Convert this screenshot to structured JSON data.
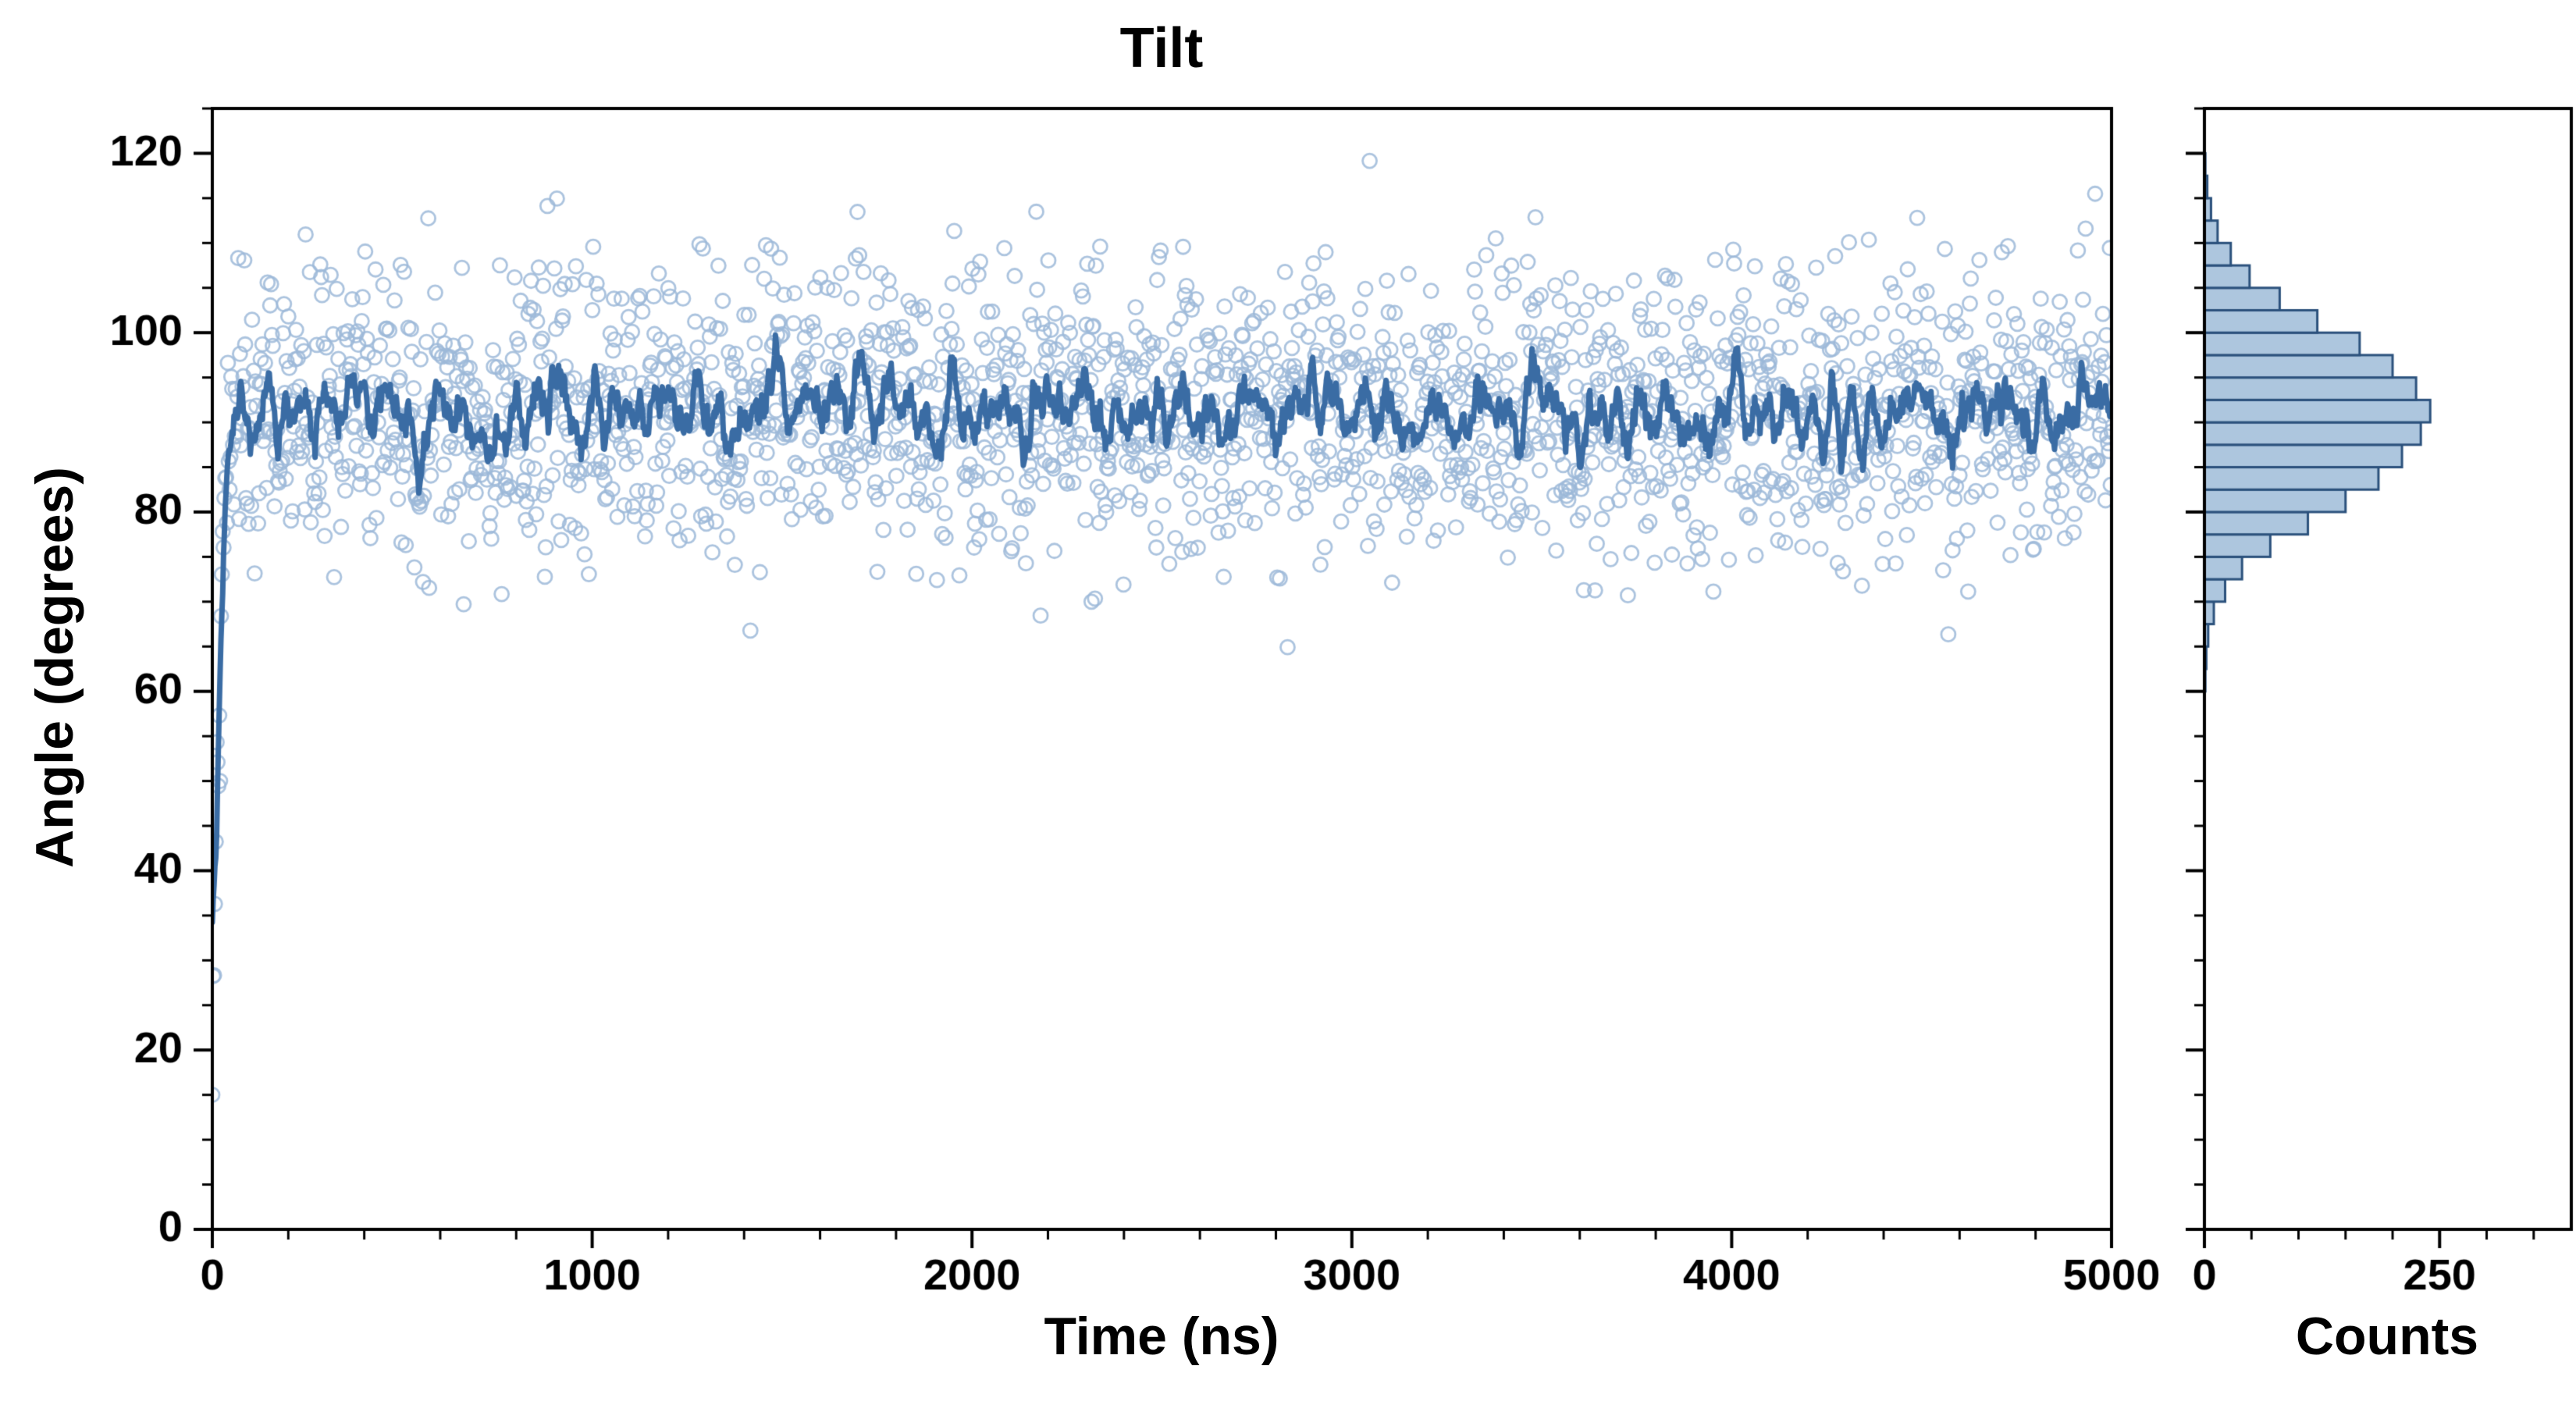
{
  "figure": {
    "background_color": "#ffffff",
    "axis_color": "#000000"
  },
  "chart_data": [
    {
      "type": "scatter",
      "panel": "main",
      "title": "Tilt",
      "xlabel": "Time (ns)",
      "ylabel": "Angle (degrees)",
      "xlim": [
        0,
        5000
      ],
      "ylim": [
        0,
        125
      ],
      "xticks": [
        0,
        1000,
        2000,
        3000,
        4000,
        5000
      ],
      "yticks": [
        0,
        20,
        40,
        60,
        80,
        100,
        120
      ],
      "x_minor_step": 200,
      "y_minor_step": 5,
      "grid": false,
      "legend": null,
      "series": [
        {
          "name": "instantaneous-tilt-angle",
          "style": "open-circle-scatter",
          "marker_color": "#9cb8d8",
          "n_points": 2200,
          "distribution": {
            "kind": "normal-estimated-from-plot",
            "approx_mean_deg": 91,
            "approx_sd_deg": 8.3,
            "clip_deg": [
              15,
              123.5
            ]
          },
          "initial_transient": {
            "t_end_ns": 45,
            "start_angle_deg": 17
          }
        },
        {
          "name": "running-mean-tilt",
          "style": "line",
          "line_color": "#3a6ca4",
          "line_width": 7,
          "window_points": 11,
          "approx_steady_mean_deg": 91
        }
      ]
    },
    {
      "type": "histogram",
      "panel": "marginal-right",
      "orientation": "horizontal",
      "xlabel": "Counts",
      "xlim": [
        0,
        390
      ],
      "xticks": [
        0,
        250
      ],
      "x_minor_step": 50,
      "ylim": [
        0,
        125
      ],
      "y_minor_step": 5,
      "yticks": [
        0,
        20,
        40,
        60,
        80,
        100,
        120
      ],
      "bin_start_deg": 60,
      "bin_width_deg": 2.5,
      "bin_counts": [
        1,
        2,
        4,
        10,
        22,
        40,
        70,
        110,
        150,
        185,
        210,
        230,
        240,
        225,
        200,
        165,
        120,
        80,
        48,
        28,
        14,
        7,
        3,
        1
      ],
      "fill_color": "#adc6de",
      "edge_color": "#2b517c"
    }
  ]
}
